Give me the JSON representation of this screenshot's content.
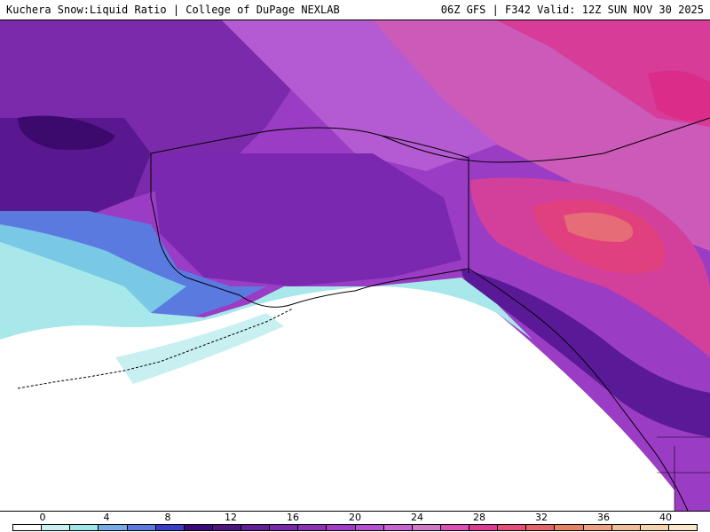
{
  "header": {
    "left_title": "Kuchera Snow:Liquid Ratio | College of DuPage NEXLAB",
    "right_title": "06Z GFS | F342 Valid: 12Z SUN NOV 30 2025"
  },
  "colorbar": {
    "tick_labels": [
      "0",
      "4",
      "8",
      "12",
      "16",
      "20",
      "24",
      "28",
      "32",
      "36",
      "40"
    ],
    "colors": [
      "#ffffff",
      "#c8f0f0",
      "#a0e6e6",
      "#78aae6",
      "#5a7ae0",
      "#3c3cc8",
      "#3c0a78",
      "#50147f",
      "#641e96",
      "#7828aa",
      "#8c32b4",
      "#a03cc8",
      "#b450d2",
      "#c864d2",
      "#d278c8",
      "#dc50b4",
      "#dc3c96",
      "#e65078",
      "#e66464",
      "#e68264",
      "#f0a082",
      "#f0be96",
      "#f5d2aa",
      "#fae6c8"
    ]
  },
  "map": {
    "region": "Alaska",
    "background": "#ffffff"
  }
}
